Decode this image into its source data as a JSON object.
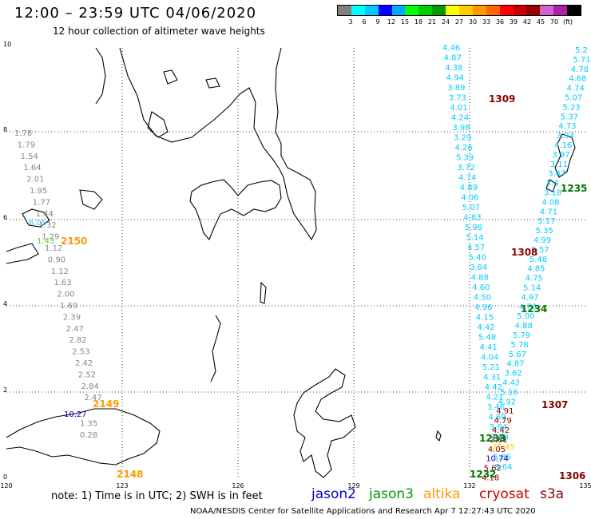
{
  "header": {
    "title": "12:00 – 23:59 UTC 04/06/2020",
    "subtitle": "12 hour collection of altimeter wave heights"
  },
  "scale": {
    "colors": [
      "#808080",
      "#00ffff",
      "#00ccff",
      "#0000ff",
      "#00aaff",
      "#00ff00",
      "#00cc00",
      "#009900",
      "#ffff00",
      "#ffcc00",
      "#ff9900",
      "#ff6600",
      "#ff0000",
      "#cc0000",
      "#990000",
      "#cc66cc",
      "#aa22aa",
      "#000000"
    ],
    "labels": [
      "3",
      "6",
      "9",
      "12",
      "15",
      "18",
      "21",
      "24",
      "27",
      "30",
      "33",
      "36",
      "39",
      "42",
      "45",
      "70",
      "(ft)"
    ]
  },
  "axes": {
    "x_ticks": [
      "120",
      "123",
      "126",
      "129",
      "132",
      "135"
    ],
    "y_ticks": [
      "0",
      "2",
      "4",
      "6",
      "8",
      "10"
    ]
  },
  "tracks": {
    "gray_left": [
      "1.78",
      "1.79",
      "1.54",
      "1.64",
      "2.01",
      "1.95",
      "1.77",
      "1.44",
      "1.32",
      "1.29",
      "1.12",
      "0.90",
      "1.12",
      "1.63",
      "2.00",
      "1.69",
      "2.39",
      "2.47",
      "2.82",
      "2.53",
      "2.42",
      "2.52",
      "2.84",
      "2.47",
      "1.35",
      "0.28"
    ],
    "gray_left_extra": [
      "6.05",
      "1.43",
      "10.27"
    ],
    "cyan_a": [
      "4.46",
      "4.87",
      "4.38",
      "4.94",
      "3.89",
      "3.73",
      "4.01",
      "4.24",
      "3.98",
      "3.29",
      "4.26",
      "5.39",
      "3.72",
      "4.74",
      "4.89",
      "4.06",
      "5.07",
      "4.83",
      "5.98",
      "5.14",
      "4.57",
      "5.40",
      "3.84",
      "4.88",
      "4.60",
      "4.50",
      "4.96",
      "4.15",
      "4.42",
      "5.48",
      "4.41",
      "4.04",
      "5.21",
      "4.31",
      "4.42",
      "4.21",
      "3.46",
      "4.69",
      "3.94",
      "3.88",
      "25.45",
      "5.86",
      "8.64"
    ],
    "cyan_b": [
      "5.2",
      "5.71",
      "4.78",
      "4.68",
      "4.74",
      "5.07",
      "5.23",
      "5.37",
      "4.73",
      "3.93",
      "4.16",
      "3.97",
      "3.11",
      "3.47",
      "3.4",
      "3.18",
      "4.08",
      "4.71",
      "5.17",
      "5.35",
      "4.99",
      "5.57",
      "5.48",
      "4.85",
      "4.75",
      "5.14",
      "4.97",
      "4.73",
      "5.00",
      "4.88",
      "5.79",
      "5.78",
      "5.67",
      "4.87",
      "3.62",
      "4.42",
      "5.16",
      "4.92",
      "4.91",
      "4.79",
      "4.42",
      "2.81",
      "4.05",
      "10.74",
      "5.62",
      "4.18"
    ],
    "passes": [
      {
        "label": "2150",
        "color": "#ff9900"
      },
      {
        "label": "2149",
        "color": "#ff9900"
      },
      {
        "label": "2148",
        "color": "#ff9900"
      },
      {
        "label": "1309",
        "color": "#880000"
      },
      {
        "label": "1308",
        "color": "#880000"
      },
      {
        "label": "1307",
        "color": "#880000"
      },
      {
        "label": "1306",
        "color": "#880000"
      },
      {
        "label": "1235",
        "color": "#007700"
      },
      {
        "label": "1234",
        "color": "#007700"
      },
      {
        "label": "1233",
        "color": "#007700"
      },
      {
        "label": "1232",
        "color": "#007700"
      }
    ]
  },
  "legend": {
    "note": "note: 1) Time is in UTC; 2) SWH is in feet",
    "items": [
      {
        "label": "jason2",
        "color": "#0000cc"
      },
      {
        "label": "jason3",
        "color": "#009900"
      },
      {
        "label": "altika",
        "color": "#ff9900"
      },
      {
        "label": "cryosat",
        "color": "#cc0000"
      },
      {
        "label": "s3a",
        "color": "#880000"
      }
    ]
  },
  "footer": "NOAA/NESDIS Center for Satellite Applications and Research   Apr  7 12:27:43 UTC 2020"
}
